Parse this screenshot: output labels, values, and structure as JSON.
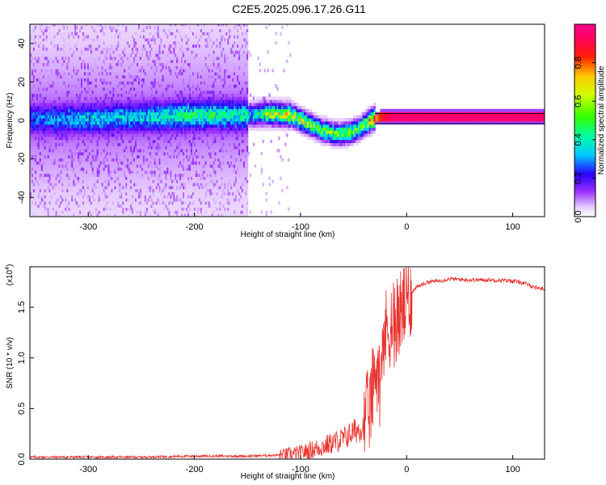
{
  "figure": {
    "title": "C2E5.2025.096.17.26.G11"
  },
  "chart_data": [
    {
      "type": "heatmap",
      "xlabel": "Height of straight line (km)",
      "ylabel": "Frequency (Hz)",
      "xlim": [
        -355,
        130
      ],
      "ylim": [
        -50,
        50
      ],
      "xticks": [
        -300,
        -200,
        -100,
        0,
        100
      ],
      "yticks": [
        -40,
        -20,
        0,
        20,
        40
      ],
      "grid": false,
      "colorbar": {
        "label": "Normalized spectral amplitude",
        "range": [
          0,
          1
        ],
        "ticks": [
          "0.0",
          "0.2",
          "0.4",
          "0.6",
          "0.8"
        ],
        "colormap": "rainbow (white-purple-blue-cyan-green-yellow-red-magenta)"
      },
      "ridge": {
        "height_km": [
          -355,
          -300,
          -250,
          -200,
          -150,
          -130,
          -110,
          -95,
          -80,
          -65,
          -55,
          -45,
          -38,
          -32,
          -25,
          -15,
          0,
          20,
          60,
          100,
          130
        ],
        "frequency_hz": [
          0,
          0,
          1,
          2,
          2,
          3,
          2,
          -2,
          -6,
          -8,
          -7,
          -5,
          -2,
          0,
          1,
          1,
          1,
          1,
          1,
          1,
          1
        ],
        "amplitude": [
          0.15,
          0.2,
          0.22,
          0.3,
          0.25,
          0.5,
          0.55,
          0.5,
          0.45,
          0.45,
          0.45,
          0.4,
          0.5,
          0.7,
          0.85,
          0.95,
          0.95,
          0.95,
          0.95,
          0.95,
          0.95
        ]
      }
    },
    {
      "type": "line",
      "xlabel": "Height of straight line (km)",
      "ylabel": "SNR (10 * v/v)",
      "yscale_label": "(x10",
      "yscale_exp": "4",
      "xlim": [
        -355,
        130
      ],
      "ylim": [
        0,
        1.9
      ],
      "xticks": [
        -300,
        -200,
        -100,
        0,
        100
      ],
      "yticks": [
        "0.0",
        "0.5",
        "1.0",
        "1.5"
      ],
      "grid": false,
      "color": "#e8322e",
      "series": [
        {
          "x": [
            -355,
            -300,
            -250,
            -200,
            -150,
            -120,
            -100,
            -80,
            -60,
            -50,
            -40,
            -35,
            -30,
            -25,
            -20,
            -15,
            -10,
            -5,
            0,
            5,
            10,
            20,
            30,
            40,
            60,
            80,
            100,
            110,
            120,
            130
          ],
          "y": [
            0.02,
            0.02,
            0.02,
            0.03,
            0.03,
            0.04,
            0.06,
            0.12,
            0.2,
            0.27,
            0.33,
            0.5,
            0.8,
            1.05,
            1.25,
            1.35,
            1.4,
            1.45,
            1.55,
            1.65,
            1.7,
            1.75,
            1.76,
            1.78,
            1.77,
            1.77,
            1.76,
            1.74,
            1.7,
            1.68
          ]
        }
      ]
    }
  ]
}
